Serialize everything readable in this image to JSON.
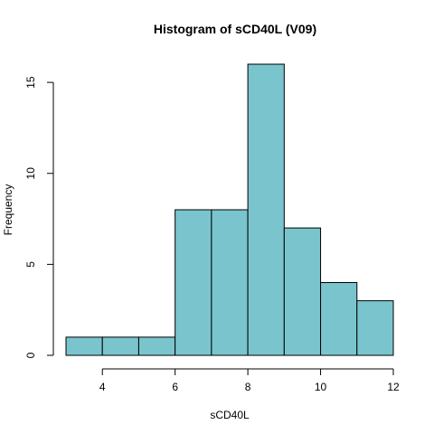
{
  "chart_data": {
    "type": "bar",
    "title": "Histogram of sCD40L (V09)",
    "xlabel": "sCD40L",
    "ylabel": "Frequency",
    "bins": [
      [
        3,
        4
      ],
      [
        4,
        5
      ],
      [
        5,
        6
      ],
      [
        6,
        7
      ],
      [
        7,
        8
      ],
      [
        8,
        9
      ],
      [
        9,
        10
      ],
      [
        10,
        11
      ],
      [
        11,
        12
      ]
    ],
    "values": [
      1,
      1,
      1,
      8,
      8,
      16,
      7,
      4,
      3
    ],
    "xlim": [
      3,
      12
    ],
    "ylim": [
      0,
      16
    ],
    "x_ticks": [
      "4",
      "6",
      "8",
      "10",
      "12"
    ],
    "y_ticks": [
      "0",
      "5",
      "10",
      "15"
    ],
    "bar_color": "#7ac5cd",
    "grid": false
  }
}
